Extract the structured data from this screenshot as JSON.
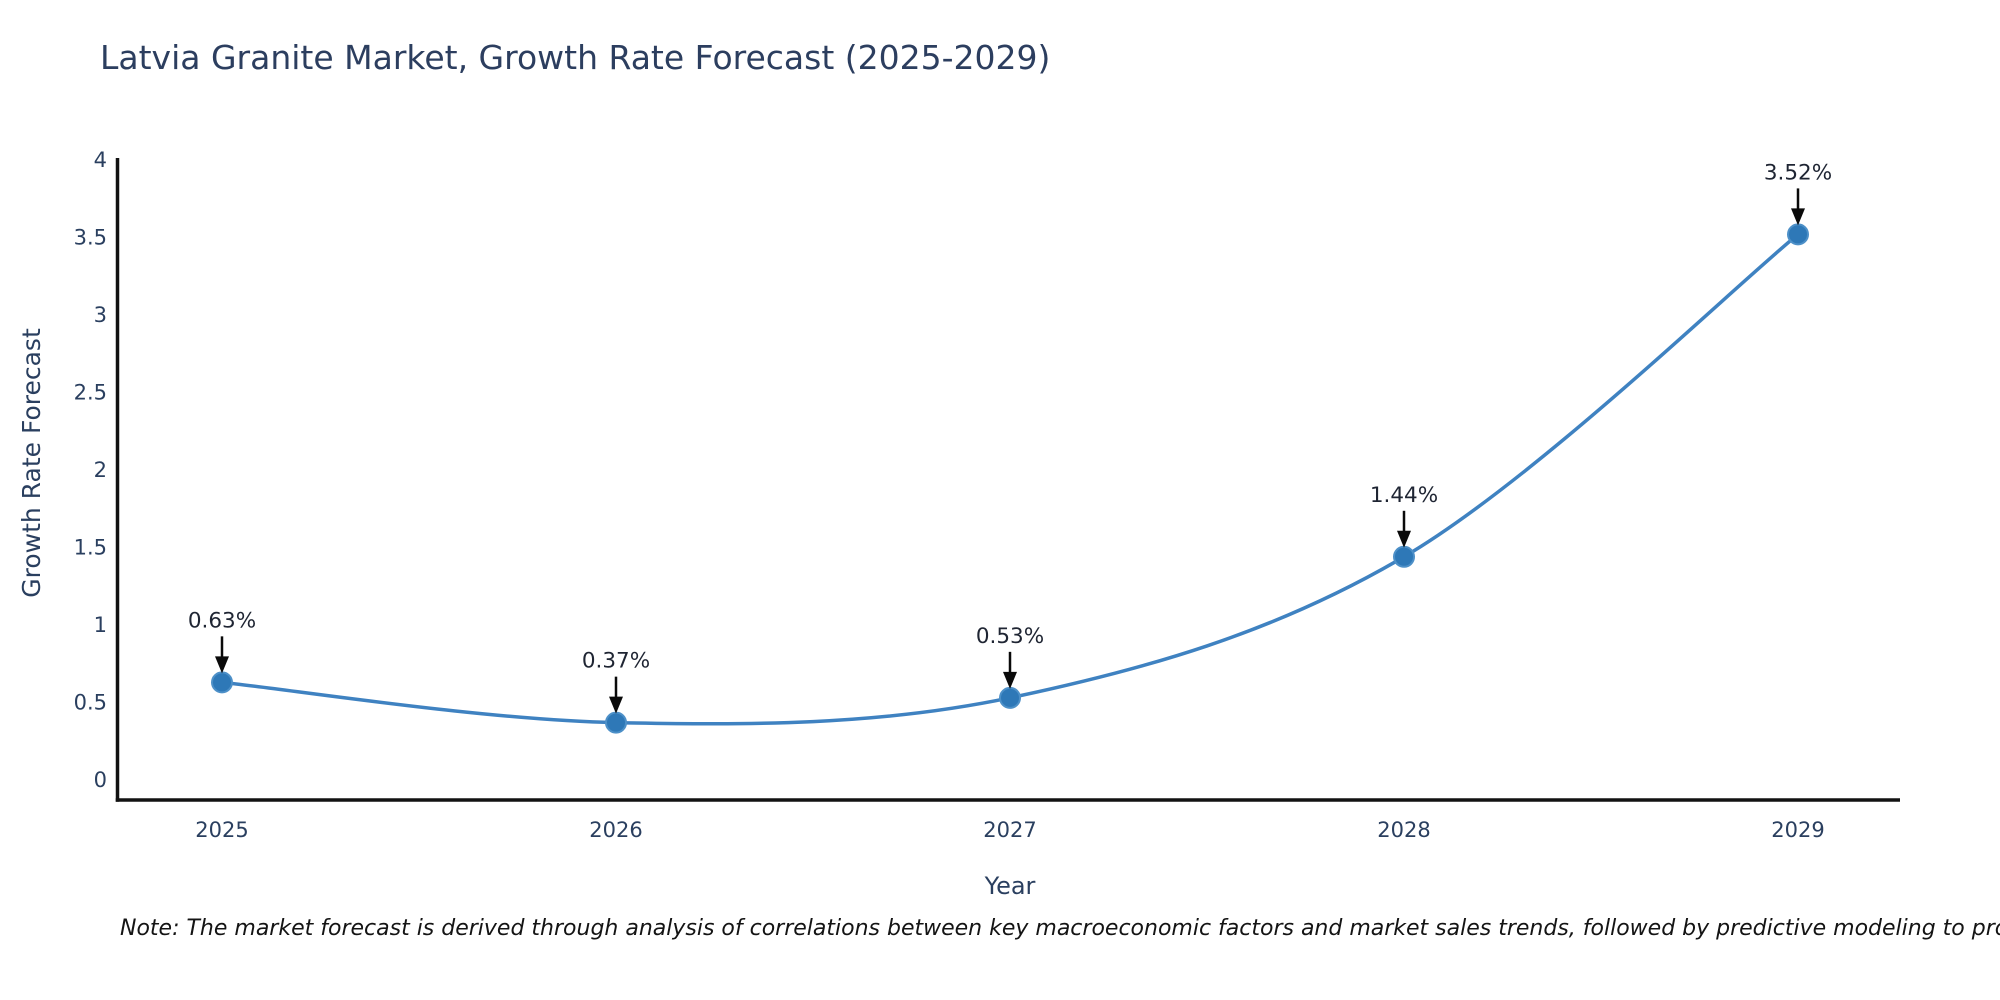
{
  "page": {
    "background": "#ffffff"
  },
  "chart_data": {
    "type": "line",
    "title": "Latvia Granite Market, Growth Rate Forecast (2025-2029)",
    "xlabel": "Year",
    "ylabel": "Growth Rate Forecast",
    "x": [
      "2025",
      "2026",
      "2027",
      "2028",
      "2029"
    ],
    "y": [
      0.63,
      0.37,
      0.53,
      1.44,
      3.52
    ],
    "point_labels": [
      "0.63%",
      "0.37%",
      "0.53%",
      "1.44%",
      "3.52%"
    ],
    "series_name": "Growth Rate Forecast",
    "ylim": [
      -0.13,
      4.0
    ],
    "yticks": [
      0,
      0.5,
      1,
      1.5,
      2,
      2.5,
      3,
      3.5,
      4
    ],
    "ytick_labels": [
      "0",
      "0.5",
      "1",
      "1.5",
      "2",
      "2.5",
      "3",
      "3.5",
      "4"
    ],
    "grid": false,
    "legend": false,
    "curve": "spline",
    "line_color": "#3f82c1",
    "marker_color": "#2e78b7",
    "marker_edge_color": "#4d90c8",
    "axis_color": "#121212",
    "tick_color": "#2a3f5f",
    "annotation_color": "#1f2533",
    "arrow_color": "#0a0a0a",
    "note": "Note: The market forecast is derived through analysis of correlations between key macroeconomic factors and market sales trends, followed by predictive modeling to project future sales"
  }
}
